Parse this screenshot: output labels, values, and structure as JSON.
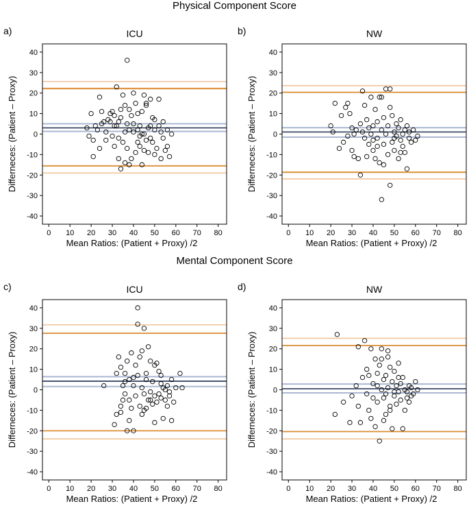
{
  "sections": [
    {
      "title": "Physical Component Score"
    },
    {
      "title": "Mental Component Score"
    }
  ],
  "colors": {
    "frame": "#000000",
    "points": "#000000",
    "mean_line": "#3b4a66",
    "mean_ci": "#aab8d4",
    "loa_line": "#d98a2e",
    "loa_ci": "#f0c49a"
  },
  "chart_data": [
    {
      "type": "scatter",
      "letter": "a)",
      "title": "ICU",
      "xlabel": "Mean Ratios: (Patient + Proxy) /2",
      "ylabel": "Differneces: (Patient – Proxy)",
      "xlim": [
        -3,
        84
      ],
      "ylim": [
        -44,
        44
      ],
      "xticks": [
        "0",
        "10",
        "20",
        "30",
        "40",
        "50",
        "60",
        "70",
        "80"
      ],
      "yticks": [
        "-40",
        "-30",
        "-20",
        "-10",
        "0",
        "10",
        "20",
        "30",
        "40"
      ],
      "mean": {
        "line": 3,
        "ci": [
          1.3,
          5.0
        ]
      },
      "loa_upper": {
        "line": 22.3,
        "ci": [
          22.0,
          25.6
        ]
      },
      "loa_lower": {
        "line": -15.6,
        "ci": [
          -15.4,
          -19.0
        ]
      },
      "points": [
        [
          18,
          3
        ],
        [
          19,
          -1
        ],
        [
          20,
          10
        ],
        [
          21,
          -11
        ],
        [
          21,
          -3
        ],
        [
          22,
          4
        ],
        [
          23,
          2
        ],
        [
          24,
          18
        ],
        [
          24,
          -7
        ],
        [
          25,
          5
        ],
        [
          26,
          6
        ],
        [
          27,
          1
        ],
        [
          27,
          -3
        ],
        [
          28,
          7
        ],
        [
          29,
          10
        ],
        [
          30,
          11
        ],
        [
          30,
          -1
        ],
        [
          31,
          4
        ],
        [
          31,
          9
        ],
        [
          32,
          23
        ],
        [
          32,
          4
        ],
        [
          33,
          6
        ],
        [
          33,
          -2
        ],
        [
          34,
          8
        ],
        [
          35,
          19
        ],
        [
          35,
          -4
        ],
        [
          36,
          1
        ],
        [
          36,
          14
        ],
        [
          37,
          36
        ],
        [
          37,
          5
        ],
        [
          38,
          -15
        ],
        [
          38,
          12
        ],
        [
          39,
          9
        ],
        [
          40,
          20
        ],
        [
          40,
          5
        ],
        [
          41,
          -9
        ],
        [
          41,
          15
        ],
        [
          42,
          2
        ],
        [
          42,
          10
        ],
        [
          43,
          4
        ],
        [
          43,
          -6
        ],
        [
          44,
          11
        ],
        [
          44,
          0
        ],
        [
          45,
          -8
        ],
        [
          45,
          19
        ],
        [
          46,
          -3
        ],
        [
          46,
          14
        ],
        [
          47,
          3
        ],
        [
          47,
          -9
        ],
        [
          48,
          4
        ],
        [
          48,
          17
        ],
        [
          49,
          -4
        ],
        [
          49,
          8
        ],
        [
          50,
          -10
        ],
        [
          50,
          2
        ],
        [
          51,
          -7
        ],
        [
          52,
          17
        ],
        [
          52,
          4
        ],
        [
          53,
          -12
        ],
        [
          53,
          1
        ],
        [
          54,
          6
        ],
        [
          54,
          -2
        ],
        [
          55,
          -8
        ],
        [
          56,
          -6
        ],
        [
          56,
          2
        ],
        [
          57,
          -11
        ],
        [
          58,
          0
        ],
        [
          25,
          11
        ],
        [
          34,
          -17
        ],
        [
          39,
          -12
        ],
        [
          44,
          -15
        ],
        [
          46,
          15
        ],
        [
          29,
          6
        ],
        [
          43,
          -1
        ],
        [
          48,
          -2
        ],
        [
          40,
          1
        ],
        [
          34,
          12
        ],
        [
          36,
          -14
        ],
        [
          31,
          -6
        ],
        [
          45,
          0
        ],
        [
          50,
          7
        ],
        [
          33,
          -12
        ],
        [
          38,
          2
        ],
        [
          42,
          -4
        ],
        [
          37,
          -7
        ]
      ]
    },
    {
      "type": "scatter",
      "letter": "b)",
      "title": "NW",
      "xlabel": "Mean Ratios: (Patient + Proxy) /2",
      "ylabel": "Differneces: (Patient – Proxy)",
      "xlim": [
        -3,
        84
      ],
      "ylim": [
        -44,
        44
      ],
      "xticks": [
        "0",
        "10",
        "20",
        "30",
        "40",
        "50",
        "60",
        "70",
        "80"
      ],
      "yticks": [
        "-40",
        "-30",
        "-20",
        "-10",
        "0",
        "10",
        "20",
        "30",
        "40"
      ],
      "mean": {
        "line": 1,
        "ci": [
          -1.5,
          3.1
        ]
      },
      "loa_upper": {
        "line": 20.4,
        "ci": [
          20.3,
          23.6
        ]
      },
      "loa_lower": {
        "line": -18.6,
        "ci": [
          -18.8,
          -21.9
        ]
      },
      "points": [
        [
          20,
          4
        ],
        [
          21,
          1
        ],
        [
          22,
          15
        ],
        [
          24,
          -7
        ],
        [
          25,
          9
        ],
        [
          26,
          -4
        ],
        [
          27,
          13
        ],
        [
          28,
          -1
        ],
        [
          28,
          15
        ],
        [
          30,
          3
        ],
        [
          31,
          0
        ],
        [
          31,
          -11
        ],
        [
          32,
          2
        ],
        [
          33,
          -12
        ],
        [
          34,
          5
        ],
        [
          34,
          -20
        ],
        [
          35,
          21
        ],
        [
          35,
          1
        ],
        [
          36,
          -2
        ],
        [
          37,
          7
        ],
        [
          37,
          -11
        ],
        [
          38,
          3
        ],
        [
          38,
          -5
        ],
        [
          39,
          18
        ],
        [
          39,
          0
        ],
        [
          40,
          4
        ],
        [
          40,
          -8
        ],
        [
          41,
          12
        ],
        [
          41,
          -12
        ],
        [
          42,
          6
        ],
        [
          42,
          -2
        ],
        [
          43,
          -14
        ],
        [
          43,
          18
        ],
        [
          44,
          -32
        ],
        [
          44,
          2
        ],
        [
          45,
          8
        ],
        [
          45,
          -5
        ],
        [
          46,
          22
        ],
        [
          46,
          0
        ],
        [
          47,
          -10
        ],
        [
          47,
          4
        ],
        [
          48,
          -25
        ],
        [
          48,
          13
        ],
        [
          49,
          -4
        ],
        [
          49,
          9
        ],
        [
          50,
          1
        ],
        [
          50,
          -8
        ],
        [
          51,
          5
        ],
        [
          51,
          -1
        ],
        [
          52,
          -12
        ],
        [
          52,
          3
        ],
        [
          53,
          -3
        ],
        [
          53,
          7
        ],
        [
          54,
          -6
        ],
        [
          54,
          0
        ],
        [
          55,
          2
        ],
        [
          55,
          -9
        ],
        [
          56,
          -17
        ],
        [
          56,
          4
        ],
        [
          57,
          -2
        ],
        [
          57,
          1
        ],
        [
          58,
          -4
        ],
        [
          59,
          2
        ],
        [
          60,
          -3
        ],
        [
          61,
          -1
        ],
        [
          30,
          -8
        ],
        [
          29,
          10
        ],
        [
          36,
          14
        ],
        [
          44,
          18
        ],
        [
          48,
          22
        ],
        [
          50,
          -2
        ],
        [
          53,
          -9
        ],
        [
          45,
          -15
        ],
        [
          40,
          -3
        ],
        [
          42,
          -6
        ]
      ]
    },
    {
      "type": "scatter",
      "letter": "c)",
      "title": "ICU",
      "xlabel": "Mean Ratios: (Patient + Proxy) /2",
      "ylabel": "Differneces: (Patient – Proxy)",
      "xlim": [
        -3,
        84
      ],
      "ylim": [
        -44,
        44
      ],
      "xticks": [
        "0",
        "10",
        "20",
        "30",
        "40",
        "50",
        "60",
        "70",
        "80"
      ],
      "yticks": [
        "-40",
        "-30",
        "-20",
        "-10",
        "0",
        "10",
        "20",
        "30",
        "40"
      ],
      "mean": {
        "line": 4.2,
        "ci": [
          1.6,
          6.4
        ]
      },
      "loa_upper": {
        "line": 27.6,
        "ci": [
          27.6,
          31.7
        ]
      },
      "loa_lower": {
        "line": -20,
        "ci": [
          -20.0,
          -24.0
        ]
      },
      "points": [
        [
          26,
          2
        ],
        [
          31,
          -17
        ],
        [
          32,
          8
        ],
        [
          32,
          -12
        ],
        [
          33,
          16
        ],
        [
          34,
          -8
        ],
        [
          34,
          11
        ],
        [
          35,
          -5
        ],
        [
          35,
          2
        ],
        [
          36,
          8
        ],
        [
          36,
          -2
        ],
        [
          37,
          -20
        ],
        [
          37,
          14
        ],
        [
          38,
          5
        ],
        [
          38,
          -5
        ],
        [
          39,
          18
        ],
        [
          39,
          -9
        ],
        [
          40,
          2
        ],
        [
          40,
          -20
        ],
        [
          41,
          12
        ],
        [
          41,
          -3
        ],
        [
          42,
          32
        ],
        [
          42,
          7
        ],
        [
          42,
          40
        ],
        [
          43,
          -8
        ],
        [
          43,
          16
        ],
        [
          44,
          1
        ],
        [
          44,
          -12
        ],
        [
          45,
          30
        ],
        [
          45,
          -2
        ],
        [
          46,
          5
        ],
        [
          46,
          8
        ],
        [
          47,
          -5
        ],
        [
          47,
          21
        ],
        [
          48,
          14
        ],
        [
          48,
          -1
        ],
        [
          49,
          -7
        ],
        [
          49,
          4
        ],
        [
          50,
          -16
        ],
        [
          50,
          -3
        ],
        [
          51,
          13
        ],
        [
          51,
          -6
        ],
        [
          52,
          9
        ],
        [
          52,
          -2
        ],
        [
          53,
          -4
        ],
        [
          53,
          3
        ],
        [
          54,
          -14
        ],
        [
          54,
          1
        ],
        [
          55,
          0
        ],
        [
          55,
          -5
        ],
        [
          56,
          -8
        ],
        [
          56,
          2
        ],
        [
          57,
          -1
        ],
        [
          57,
          -3
        ],
        [
          58,
          -15
        ],
        [
          58,
          5
        ],
        [
          59,
          -6
        ],
        [
          60,
          1
        ],
        [
          62,
          8
        ],
        [
          63,
          1
        ],
        [
          34,
          -11
        ],
        [
          38,
          -15
        ],
        [
          44,
          19
        ],
        [
          46,
          -9
        ],
        [
          50,
          12
        ],
        [
          53,
          7
        ],
        [
          45,
          -10
        ],
        [
          40,
          6
        ],
        [
          36,
          4
        ],
        [
          48,
          -5
        ]
      ]
    },
    {
      "type": "scatter",
      "letter": "d)",
      "title": "NW",
      "xlabel": "Mean Ratios: (Patient + Proxy) /2",
      "ylabel": "Differneces: (Patient – Proxy)",
      "xlim": [
        -3,
        84
      ],
      "ylim": [
        -44,
        44
      ],
      "xticks": [
        "0",
        "10",
        "20",
        "30",
        "40",
        "50",
        "60",
        "70",
        "80"
      ],
      "yticks": [
        "-40",
        "-30",
        "-20",
        "-10",
        "0",
        "10",
        "20",
        "30",
        "40"
      ],
      "mean": {
        "line": 0.5,
        "ci": [
          -1.5,
          2.8
        ]
      },
      "loa_upper": {
        "line": 21.6,
        "ci": [
          21.6,
          25.1
        ]
      },
      "loa_lower": {
        "line": -20.4,
        "ci": [
          -20.4,
          -24.0
        ]
      },
      "points": [
        [
          22,
          -12
        ],
        [
          23,
          27
        ],
        [
          26,
          -6
        ],
        [
          29,
          -16
        ],
        [
          30,
          -3
        ],
        [
          32,
          2
        ],
        [
          33,
          -8
        ],
        [
          33,
          21
        ],
        [
          35,
          6
        ],
        [
          36,
          24
        ],
        [
          37,
          -2
        ],
        [
          37,
          10
        ],
        [
          38,
          7
        ],
        [
          38,
          -10
        ],
        [
          39,
          20
        ],
        [
          40,
          -4
        ],
        [
          40,
          3
        ],
        [
          41,
          -18
        ],
        [
          41,
          15
        ],
        [
          42,
          8
        ],
        [
          42,
          -6
        ],
        [
          43,
          -25
        ],
        [
          43,
          12
        ],
        [
          44,
          0
        ],
        [
          44,
          20
        ],
        [
          45,
          -4
        ],
        [
          45,
          5
        ],
        [
          46,
          -12
        ],
        [
          46,
          -2
        ],
        [
          47,
          16
        ],
        [
          47,
          1
        ],
        [
          48,
          -8
        ],
        [
          48,
          11
        ],
        [
          49,
          -19
        ],
        [
          49,
          4
        ],
        [
          50,
          9
        ],
        [
          50,
          -3
        ],
        [
          51,
          2
        ],
        [
          51,
          -7
        ],
        [
          52,
          13
        ],
        [
          52,
          -1
        ],
        [
          53,
          -5
        ],
        [
          53,
          3
        ],
        [
          54,
          -19
        ],
        [
          54,
          6
        ],
        [
          55,
          -10
        ],
        [
          55,
          0
        ],
        [
          56,
          -1
        ],
        [
          56,
          -4
        ],
        [
          57,
          2
        ],
        [
          57,
          -6
        ],
        [
          58,
          1
        ],
        [
          58,
          -3
        ],
        [
          59,
          -2
        ],
        [
          60,
          4
        ],
        [
          61,
          0
        ],
        [
          34,
          -16
        ],
        [
          39,
          -14
        ],
        [
          44,
          15
        ],
        [
          47,
          19
        ],
        [
          50,
          -1
        ],
        [
          52,
          6
        ],
        [
          46,
          7
        ],
        [
          48,
          -10
        ],
        [
          42,
          2
        ],
        [
          45,
          -15
        ]
      ]
    }
  ]
}
